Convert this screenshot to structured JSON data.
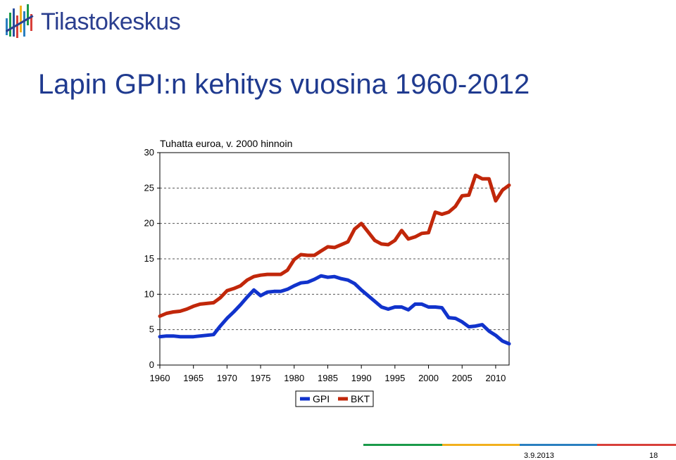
{
  "header": {
    "logo_text": "Tilastokeskus",
    "title": "Lapin GPI:n kehitys vuosina 1960-2012"
  },
  "footer": {
    "date": "3.9.2013",
    "page": "18",
    "bar_colors": [
      "#1a9a4a",
      "#f2b01e",
      "#2a7fc0",
      "#d8403a"
    ]
  },
  "chart_data": {
    "type": "line",
    "unit_label": "Tuhatta euroa, v. 2000 hinnoin",
    "xlim": [
      1960,
      2012
    ],
    "ylim": [
      0,
      30
    ],
    "x_ticks": [
      1960,
      1965,
      1970,
      1975,
      1980,
      1985,
      1990,
      1995,
      2000,
      2005,
      2010
    ],
    "y_ticks": [
      0,
      5,
      10,
      15,
      20,
      25,
      30
    ],
    "grid": "horizontal dashed",
    "legend_position": "bottom",
    "x": [
      1960,
      1961,
      1962,
      1963,
      1964,
      1965,
      1966,
      1967,
      1968,
      1969,
      1970,
      1971,
      1972,
      1973,
      1974,
      1975,
      1976,
      1977,
      1978,
      1979,
      1980,
      1981,
      1982,
      1983,
      1984,
      1985,
      1986,
      1987,
      1988,
      1989,
      1990,
      1991,
      1992,
      1993,
      1994,
      1995,
      1996,
      1997,
      1998,
      1999,
      2000,
      2001,
      2002,
      2003,
      2004,
      2005,
      2006,
      2007,
      2008,
      2009,
      2010,
      2011,
      2012
    ],
    "series": [
      {
        "name": "GPI",
        "color": "#1133cc",
        "values": [
          4.0,
          4.1,
          4.1,
          4.0,
          4.0,
          4.0,
          4.1,
          4.2,
          4.3,
          5.5,
          6.6,
          7.5,
          8.5,
          9.6,
          10.6,
          9.8,
          10.3,
          10.4,
          10.4,
          10.7,
          11.2,
          11.6,
          11.7,
          12.1,
          12.6,
          12.4,
          12.5,
          12.2,
          12.0,
          11.5,
          10.6,
          9.8,
          9.0,
          8.2,
          7.9,
          8.2,
          8.2,
          7.8,
          8.6,
          8.6,
          8.2,
          8.2,
          8.1,
          6.7,
          6.6,
          6.1,
          5.4,
          5.5,
          5.7,
          4.8,
          4.2,
          3.4,
          3.0
        ]
      },
      {
        "name": "BKT",
        "color": "#c1270a",
        "values": [
          6.9,
          7.3,
          7.5,
          7.6,
          7.9,
          8.3,
          8.6,
          8.7,
          8.8,
          9.5,
          10.5,
          10.8,
          11.2,
          12.0,
          12.5,
          12.7,
          12.8,
          12.8,
          12.8,
          13.4,
          14.9,
          15.6,
          15.5,
          15.5,
          16.1,
          16.7,
          16.6,
          17.0,
          17.4,
          19.2,
          20.0,
          18.8,
          17.6,
          17.1,
          17.0,
          17.6,
          19.0,
          17.8,
          18.1,
          18.6,
          18.7,
          21.6,
          21.3,
          21.6,
          22.4,
          23.9,
          24.0,
          26.8,
          26.3,
          26.3,
          23.2,
          24.7,
          25.4
        ]
      }
    ]
  }
}
